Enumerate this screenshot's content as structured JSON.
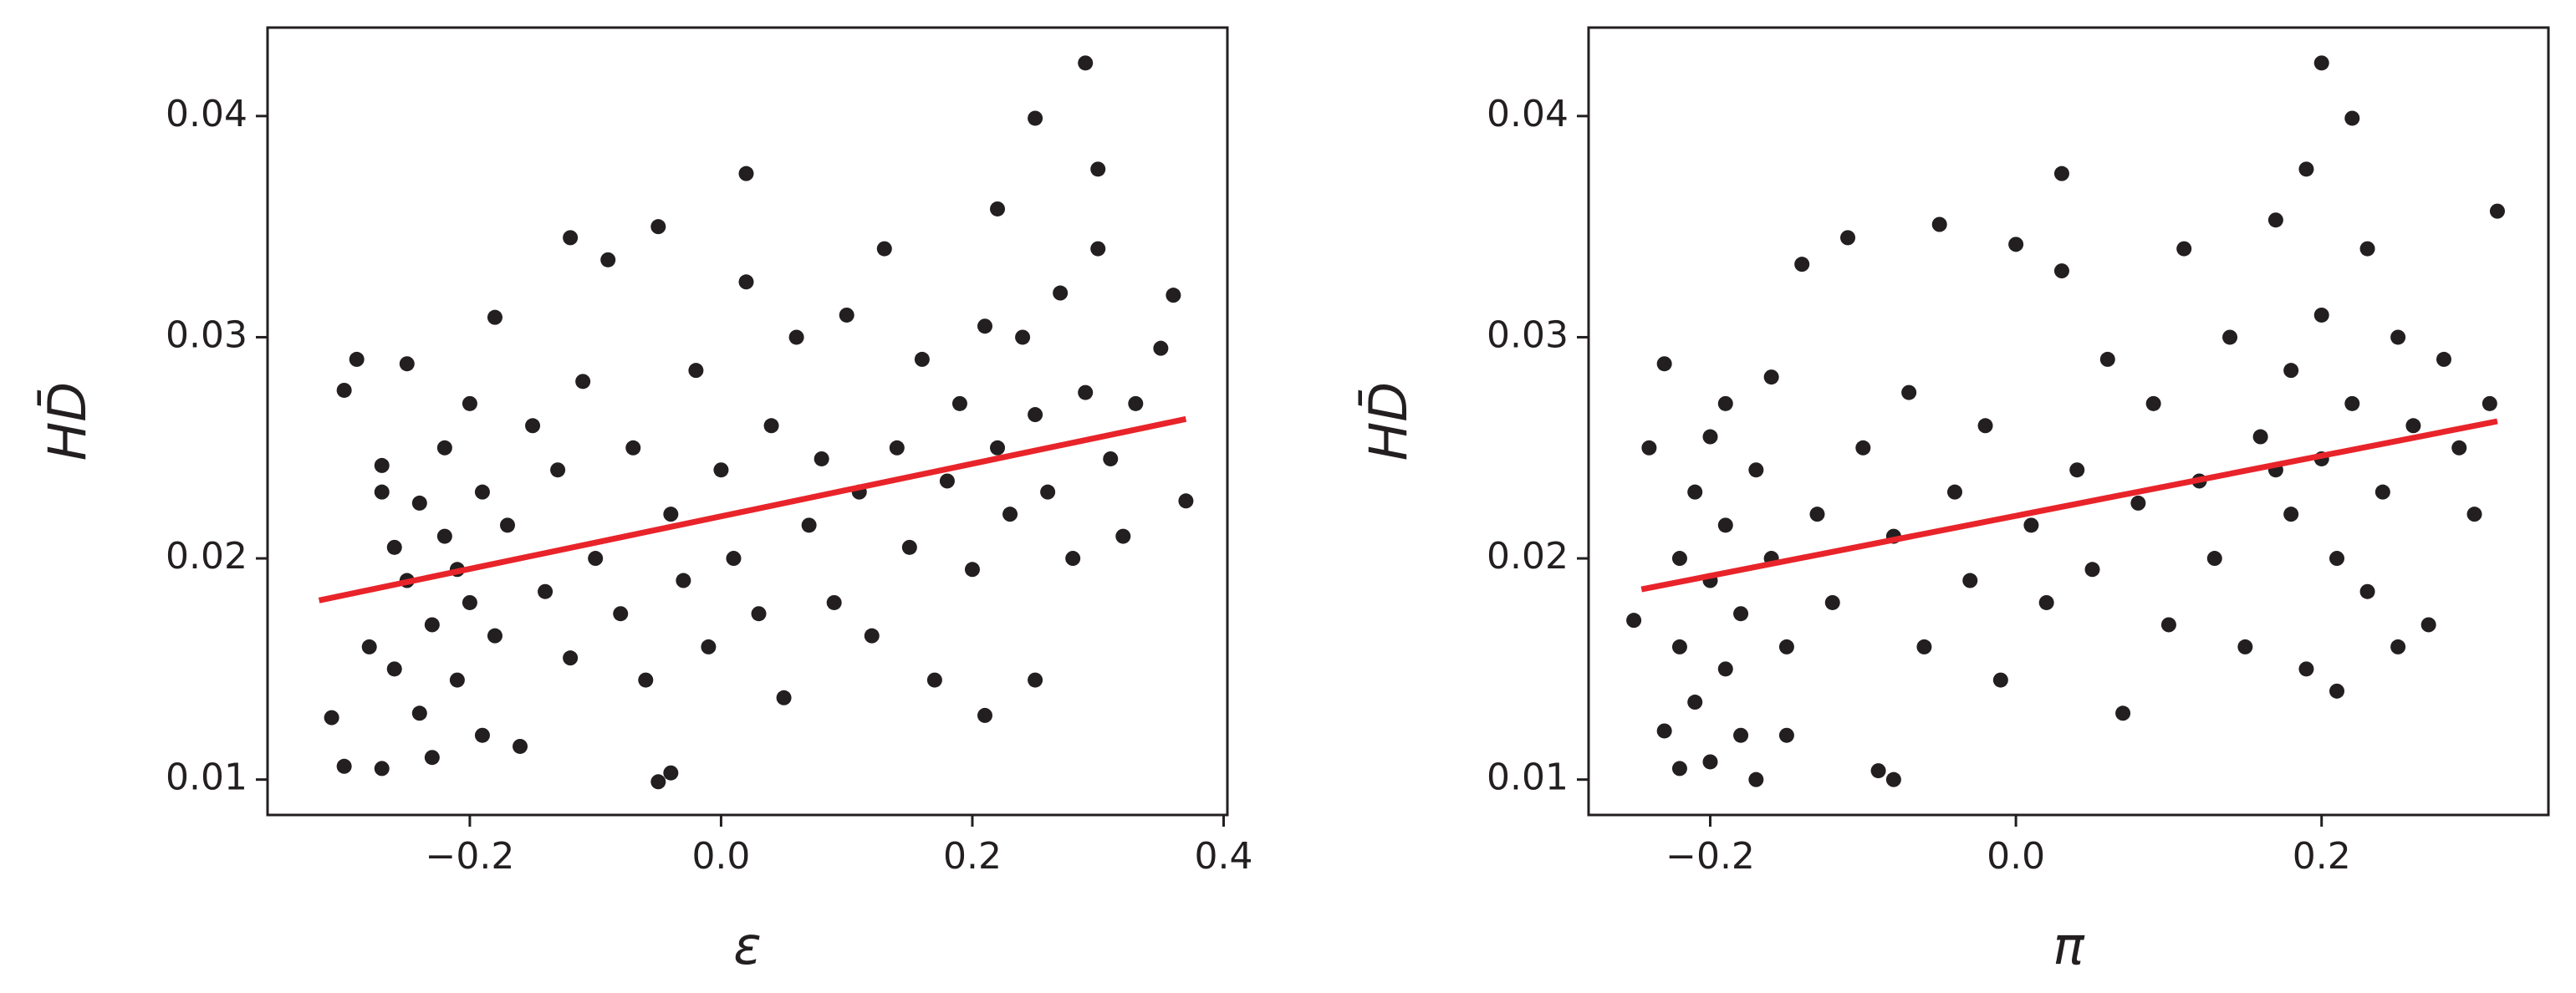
{
  "chart_data": [
    {
      "type": "scatter",
      "xlabel": "ε",
      "ylabel": "HD̄",
      "color": "#231f20",
      "xlim": [
        -0.361,
        0.403
      ],
      "ylim": [
        0.0084,
        0.044
      ],
      "xticks": [
        {
          "value": -0.2,
          "label": "−0.2"
        },
        {
          "value": 0,
          "label": "0.0"
        },
        0.2,
        0.4
      ],
      "yticks": [
        0.01,
        0.02,
        0.03,
        0.04
      ],
      "x": [
        -0.31,
        -0.3,
        -0.29,
        -0.28,
        -0.27,
        -0.27,
        -0.26,
        -0.26,
        -0.25,
        -0.25,
        -0.24,
        -0.24,
        -0.23,
        -0.23,
        -0.22,
        -0.22,
        -0.21,
        -0.21,
        -0.2,
        -0.2,
        -0.19,
        -0.19,
        -0.18,
        -0.18,
        -0.17,
        -0.16,
        -0.15,
        -0.14,
        -0.13,
        -0.12,
        -0.11,
        -0.1,
        -0.09,
        -0.08,
        -0.07,
        -0.06,
        -0.05,
        -0.04,
        -0.03,
        -0.02,
        -0.01,
        0.0,
        0.01,
        0.02,
        0.03,
        0.04,
        0.05,
        0.06,
        0.07,
        0.08,
        0.09,
        0.1,
        0.11,
        0.12,
        0.13,
        0.14,
        0.15,
        0.16,
        0.17,
        0.18,
        0.19,
        0.2,
        0.21,
        0.22,
        0.22,
        0.23,
        0.24,
        0.25,
        0.25,
        0.26,
        0.27,
        0.28,
        0.29,
        0.3,
        0.31,
        0.32,
        0.33,
        0.35,
        0.37,
        0.29,
        0.25,
        0.02,
        0.3,
        -0.05,
        -0.04,
        -0.12,
        0.36,
        -0.3,
        0.21,
        -0.27
      ],
      "y": [
        0.0128,
        0.0276,
        0.029,
        0.016,
        0.0242,
        0.0105,
        0.0205,
        0.015,
        0.019,
        0.0288,
        0.013,
        0.0225,
        0.017,
        0.011,
        0.021,
        0.025,
        0.0145,
        0.0195,
        0.018,
        0.027,
        0.012,
        0.023,
        0.0309,
        0.0165,
        0.0215,
        0.0115,
        0.026,
        0.0185,
        0.024,
        0.0155,
        0.028,
        0.02,
        0.0335,
        0.0175,
        0.025,
        0.0145,
        0.035,
        0.022,
        0.019,
        0.0285,
        0.016,
        0.024,
        0.02,
        0.0325,
        0.0175,
        0.026,
        0.0137,
        0.03,
        0.0215,
        0.0245,
        0.018,
        0.031,
        0.023,
        0.0165,
        0.034,
        0.025,
        0.0205,
        0.029,
        0.0145,
        0.0235,
        0.027,
        0.0195,
        0.0129,
        0.0358,
        0.025,
        0.022,
        0.03,
        0.0145,
        0.0265,
        0.023,
        0.032,
        0.02,
        0.0275,
        0.034,
        0.0245,
        0.021,
        0.027,
        0.0295,
        0.0226,
        0.0424,
        0.0399,
        0.0374,
        0.0376,
        0.0099,
        0.0103,
        0.0345,
        0.0319,
        0.0106,
        0.0305,
        0.023
      ],
      "fit": {
        "color": "#e8242a",
        "x": [
          -0.32,
          0.37
        ],
        "y": [
          0.0181,
          0.0263
        ]
      }
    },
    {
      "type": "scatter",
      "xlabel": "π",
      "ylabel": "HD̄",
      "color": "#231f20",
      "xlim": [
        -0.2796,
        0.3484
      ],
      "ylim": [
        0.0084,
        0.044
      ],
      "xticks": [
        {
          "value": -0.2,
          "label": "−0.2"
        },
        {
          "value": 0,
          "label": "0.0"
        },
        0.2
      ],
      "yticks": [
        0.01,
        0.02,
        0.03,
        0.04
      ],
      "x": [
        -0.25,
        -0.24,
        -0.23,
        -0.23,
        -0.22,
        -0.22,
        -0.21,
        -0.21,
        -0.2,
        -0.2,
        -0.2,
        -0.19,
        -0.19,
        -0.18,
        -0.18,
        -0.17,
        -0.17,
        -0.16,
        -0.16,
        -0.15,
        -0.14,
        -0.13,
        -0.12,
        -0.11,
        -0.1,
        -0.09,
        -0.08,
        -0.08,
        -0.07,
        -0.06,
        -0.05,
        -0.04,
        -0.03,
        -0.02,
        -0.01,
        0.0,
        0.01,
        0.02,
        0.03,
        0.03,
        0.04,
        0.05,
        0.06,
        0.07,
        0.08,
        0.09,
        0.1,
        0.11,
        0.12,
        0.13,
        0.14,
        0.15,
        0.16,
        0.17,
        0.18,
        0.18,
        0.19,
        0.19,
        0.2,
        0.2,
        0.2,
        0.21,
        0.21,
        0.22,
        0.22,
        0.23,
        0.24,
        0.25,
        0.25,
        0.26,
        0.27,
        0.28,
        0.29,
        0.3,
        0.31,
        0.315,
        -0.19,
        -0.22,
        -0.15,
        0.17,
        0.23
      ],
      "y": [
        0.0172,
        0.025,
        0.0122,
        0.0288,
        0.02,
        0.016,
        0.023,
        0.0135,
        0.019,
        0.0108,
        0.0255,
        0.015,
        0.0215,
        0.0175,
        0.012,
        0.024,
        0.01,
        0.02,
        0.0282,
        0.016,
        0.0333,
        0.022,
        0.018,
        0.0345,
        0.025,
        0.0104,
        0.01,
        0.021,
        0.0275,
        0.016,
        0.0351,
        0.023,
        0.019,
        0.026,
        0.0145,
        0.0342,
        0.0215,
        0.018,
        0.033,
        0.0374,
        0.024,
        0.0195,
        0.029,
        0.013,
        0.0225,
        0.027,
        0.017,
        0.034,
        0.0235,
        0.02,
        0.03,
        0.016,
        0.0255,
        0.0353,
        0.022,
        0.0285,
        0.0376,
        0.015,
        0.0424,
        0.0245,
        0.031,
        0.014,
        0.02,
        0.0399,
        0.027,
        0.034,
        0.023,
        0.016,
        0.03,
        0.026,
        0.017,
        0.029,
        0.025,
        0.022,
        0.027,
        0.0357,
        0.027,
        0.0105,
        0.012,
        0.024,
        0.0185
      ],
      "fit": {
        "color": "#e8242a",
        "x": [
          -0.245,
          0.315
        ],
        "y": [
          0.0186,
          0.0262
        ]
      }
    }
  ]
}
